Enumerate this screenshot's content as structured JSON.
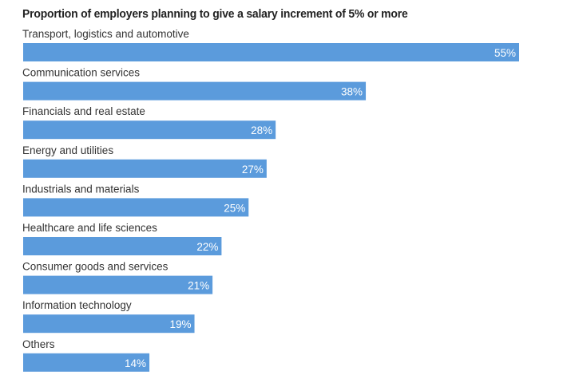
{
  "chart_data": {
    "type": "bar",
    "orientation": "horizontal",
    "title": "Proportion of employers planning to give a salary increment of 5% or more",
    "xlabel": "",
    "ylabel": "",
    "value_suffix": "%",
    "xlim": [
      0,
      55
    ],
    "grid": false,
    "legend": "none",
    "bar_color": "#5b9bdc",
    "categories": [
      "Transport, logistics and automotive",
      "Communication services",
      "Financials and real estate",
      "Energy and utilities",
      "Industrials and materials",
      "Healthcare and life sciences",
      "Consumer goods and services",
      "Information technology",
      "Others"
    ],
    "values": [
      55,
      38,
      28,
      27,
      25,
      22,
      21,
      19,
      14
    ],
    "data_labels": [
      "55%",
      "38%",
      "28%",
      "27%",
      "25%",
      "22%",
      "21%",
      "19%",
      "14%"
    ]
  }
}
